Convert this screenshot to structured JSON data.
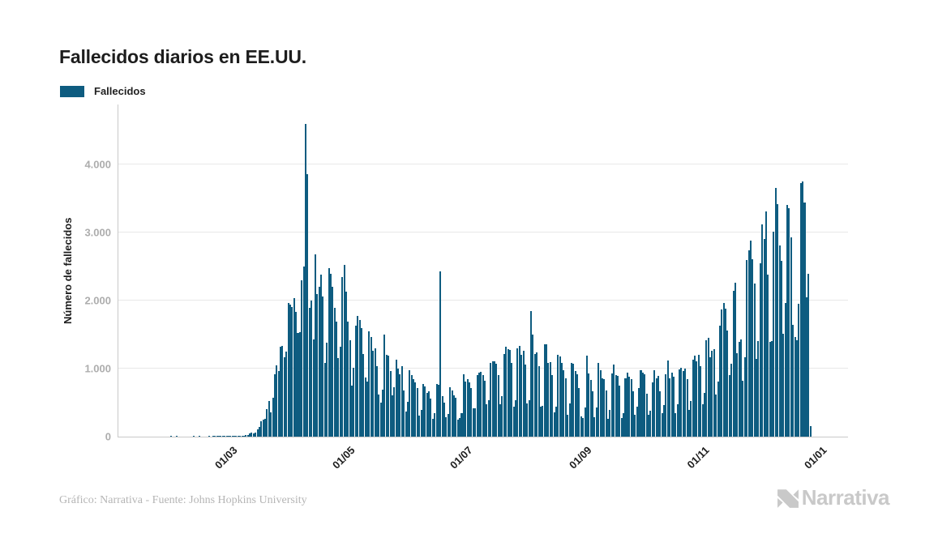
{
  "header": {
    "title": "Fallecidos diarios en EE.UU."
  },
  "legend": {
    "series_label": "Fallecidos",
    "swatch_color": "#0e5c80"
  },
  "footer": {
    "credit": "Gráfico: Narrativa - Fuente: Johns Hopkins University",
    "brand_name": "Narrativa",
    "brand_icon": "narrativa-n-logo",
    "brand_color": "#c9c9c9"
  },
  "chart_data": {
    "type": "bar",
    "title": "Fallecidos diarios en EE.UU.",
    "series_name": "Fallecidos",
    "xlabel": "",
    "ylabel": "Número de fallecidos",
    "bar_color": "#0e5c80",
    "grid": "horizontal",
    "legend_position": "top-left",
    "start_date": "2020-01-22",
    "ylim": [
      0,
      4880
    ],
    "yticks": [
      {
        "value": 0,
        "label": "0"
      },
      {
        "value": 1000,
        "label": "1.000"
      },
      {
        "value": 2000,
        "label": "2.000"
      },
      {
        "value": 3000,
        "label": "3.000"
      },
      {
        "value": 4000,
        "label": "4.000"
      }
    ],
    "xticks": [
      {
        "day_index": 39,
        "label": "01/03"
      },
      {
        "day_index": 100,
        "label": "01/05"
      },
      {
        "day_index": 161,
        "label": "01/07"
      },
      {
        "day_index": 223,
        "label": "01/09"
      },
      {
        "day_index": 284,
        "label": "01/11"
      },
      {
        "day_index": 345,
        "label": "01/01"
      }
    ],
    "values": [
      0,
      0,
      0,
      0,
      0,
      0,
      0,
      0,
      0,
      0,
      0,
      0,
      0,
      0,
      0,
      1,
      0,
      0,
      1,
      0,
      0,
      0,
      0,
      0,
      0,
      0,
      0,
      1,
      0,
      0,
      1,
      0,
      0,
      0,
      0,
      1,
      0,
      1,
      1,
      1,
      5,
      3,
      4,
      3,
      4,
      4,
      4,
      5,
      6,
      9,
      3,
      9,
      11,
      12,
      19,
      26,
      42,
      57,
      50,
      62,
      112,
      140,
      225,
      247,
      267,
      400,
      525,
      363,
      573,
      912,
      1049,
      968,
      1321,
      1331,
      1165,
      1255,
      1970,
      1940,
      1900,
      2035,
      1830,
      1528,
      1535,
      2299,
      2494,
      4591,
      3857,
      1891,
      1997,
      1433,
      2673,
      2097,
      2201,
      2377,
      2065,
      1087,
      1384,
      2470,
      2390,
      2201,
      1897,
      1691,
      1154,
      1324,
      2350,
      2528,
      2129,
      1687,
      1422,
      750,
      1008,
      1630,
      1772,
      1715,
      1595,
      1218,
      865,
      808,
      1552,
      1461,
      1263,
      1293,
      1035,
      620,
      505,
      693,
      1505,
      1199,
      1193,
      960,
      605,
      730,
      1134,
      995,
      921,
      1036,
      673,
      372,
      510,
      979,
      905,
      847,
      802,
      709,
      312,
      389,
      768,
      738,
      645,
      672,
      560,
      267,
      350,
      768,
      760,
      2425,
      600,
      505,
      283,
      334,
      724,
      678,
      613,
      576,
      254,
      268,
      351,
      912,
      807,
      846,
      797,
      717,
      419,
      417,
      900,
      935,
      952,
      908,
      817,
      477,
      531,
      1089,
      1111,
      1106,
      1074,
      900,
      481,
      593,
      1215,
      1323,
      1289,
      1270,
      1084,
      442,
      532,
      1303,
      1335,
      1203,
      1260,
      1055,
      491,
      541,
      1851,
      1504,
      1211,
      1236,
      1031,
      438,
      447,
      1358,
      1356,
      1089,
      1093,
      902,
      362,
      446,
      1207,
      1184,
      1081,
      977,
      856,
      327,
      491,
      1083,
      1077,
      964,
      914,
      720,
      302,
      268,
      430,
      1191,
      925,
      828,
      662,
      286,
      426,
      1078,
      982,
      862,
      843,
      681,
      263,
      388,
      927,
      1058,
      907,
      893,
      745,
      271,
      344,
      861,
      941,
      877,
      844,
      667,
      326,
      443,
      712,
      973,
      942,
      919,
      636,
      319,
      382,
      802,
      980,
      856,
      893,
      663,
      341,
      462,
      916,
      1117,
      856,
      940,
      878,
      340,
      477,
      986,
      1016,
      966,
      1004,
      846,
      398,
      528,
      1128,
      1185,
      1113,
      1208,
      1032,
      479,
      643,
      1420,
      1449,
      1165,
      1266,
      1285,
      619,
      808,
      1632,
      1869,
      1962,
      1878,
      1562,
      906,
      1072,
      2146,
      2260,
      1232,
      1395,
      1429,
      822,
      1172,
      2597,
      2733,
      2879,
      2607,
      2254,
      1138,
      1404,
      2546,
      3124,
      2902,
      3309,
      2378,
      1389,
      1404,
      3015,
      3656,
      3420,
      2814,
      2588,
      1514,
      1962,
      3401,
      3359,
      2934,
      1645,
      1462,
      1421,
      1947,
      3725,
      3744,
      3440,
      2051,
      2398,
      150
    ]
  }
}
